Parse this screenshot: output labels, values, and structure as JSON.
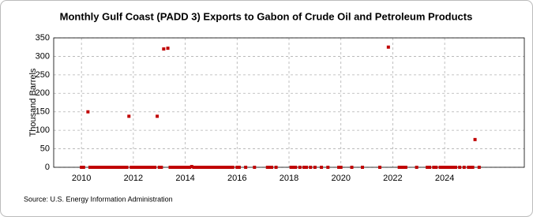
{
  "chart_data": {
    "type": "scatter",
    "title": "Monthly Gulf Coast (PADD 3) Exports to Gabon of Crude Oil and Petroleum Products",
    "y_label": "Thousand Barrels",
    "source": "Source: U.S. Energy Information Administration",
    "color": "#c00000",
    "grid": true,
    "xlim": [
      2008.93,
      2027.07
    ],
    "xticks": [
      2010,
      2012,
      2014,
      2016,
      2018,
      2020,
      2022,
      2024
    ],
    "ylim": [
      0,
      350
    ],
    "yticks": [
      0,
      50,
      100,
      150,
      200,
      250,
      300,
      350
    ],
    "x": [
      2010.0,
      2010.08,
      2010.25,
      2010.33,
      2010.42,
      2010.5,
      2010.58,
      2010.67,
      2010.75,
      2010.83,
      2010.92,
      2011.0,
      2011.08,
      2011.17,
      2011.25,
      2011.33,
      2011.42,
      2011.5,
      2011.58,
      2011.67,
      2011.75,
      2011.83,
      2011.92,
      2012.0,
      2012.08,
      2012.17,
      2012.25,
      2012.33,
      2012.42,
      2012.5,
      2012.58,
      2012.67,
      2012.75,
      2012.83,
      2012.92,
      2013.0,
      2013.08,
      2013.17,
      2013.33,
      2013.42,
      2013.5,
      2013.58,
      2013.67,
      2013.75,
      2013.83,
      2013.92,
      2014.0,
      2014.08,
      2014.17,
      2014.25,
      2014.33,
      2014.42,
      2014.5,
      2014.58,
      2014.67,
      2014.75,
      2014.83,
      2014.92,
      2015.0,
      2015.08,
      2015.17,
      2015.25,
      2015.33,
      2015.42,
      2015.5,
      2015.58,
      2015.67,
      2015.75,
      2015.83,
      2016.0,
      2016.08,
      2016.33,
      2016.67,
      2017.17,
      2017.25,
      2017.33,
      2017.5,
      2018.08,
      2018.17,
      2018.25,
      2018.42,
      2018.58,
      2018.67,
      2018.83,
      2019.0,
      2019.25,
      2019.5,
      2019.92,
      2020.0,
      2020.42,
      2020.83,
      2021.5,
      2021.83,
      2022.25,
      2022.33,
      2022.42,
      2022.5,
      2022.92,
      2023.33,
      2023.42,
      2023.58,
      2023.67,
      2023.83,
      2023.92,
      2024.0,
      2024.08,
      2024.17,
      2024.25,
      2024.33,
      2024.42,
      2024.58,
      2024.75,
      2024.92,
      2025.0,
      2025.08,
      2025.17,
      2025.33
    ],
    "values": [
      0,
      0,
      150,
      0,
      0,
      0,
      0,
      0,
      0,
      0,
      0,
      0,
      0,
      0,
      0,
      0,
      0,
      0,
      0,
      0,
      0,
      138,
      0,
      0,
      0,
      0,
      0,
      0,
      0,
      0,
      0,
      0,
      0,
      0,
      138,
      0,
      0,
      320,
      322,
      0,
      0,
      0,
      0,
      0,
      0,
      0,
      0,
      0,
      0,
      2,
      0,
      0,
      0,
      0,
      0,
      0,
      0,
      0,
      0,
      0,
      0,
      0,
      0,
      0,
      0,
      0,
      0,
      0,
      0,
      0,
      0,
      0,
      0,
      0,
      0,
      0,
      0,
      0,
      0,
      0,
      0,
      0,
      0,
      0,
      0,
      0,
      0,
      0,
      0,
      0,
      0,
      0,
      325,
      0,
      0,
      0,
      0,
      0,
      0,
      0,
      0,
      0,
      0,
      0,
      0,
      0,
      0,
      0,
      0,
      0,
      0,
      0,
      0,
      0,
      0,
      75,
      0
    ]
  }
}
